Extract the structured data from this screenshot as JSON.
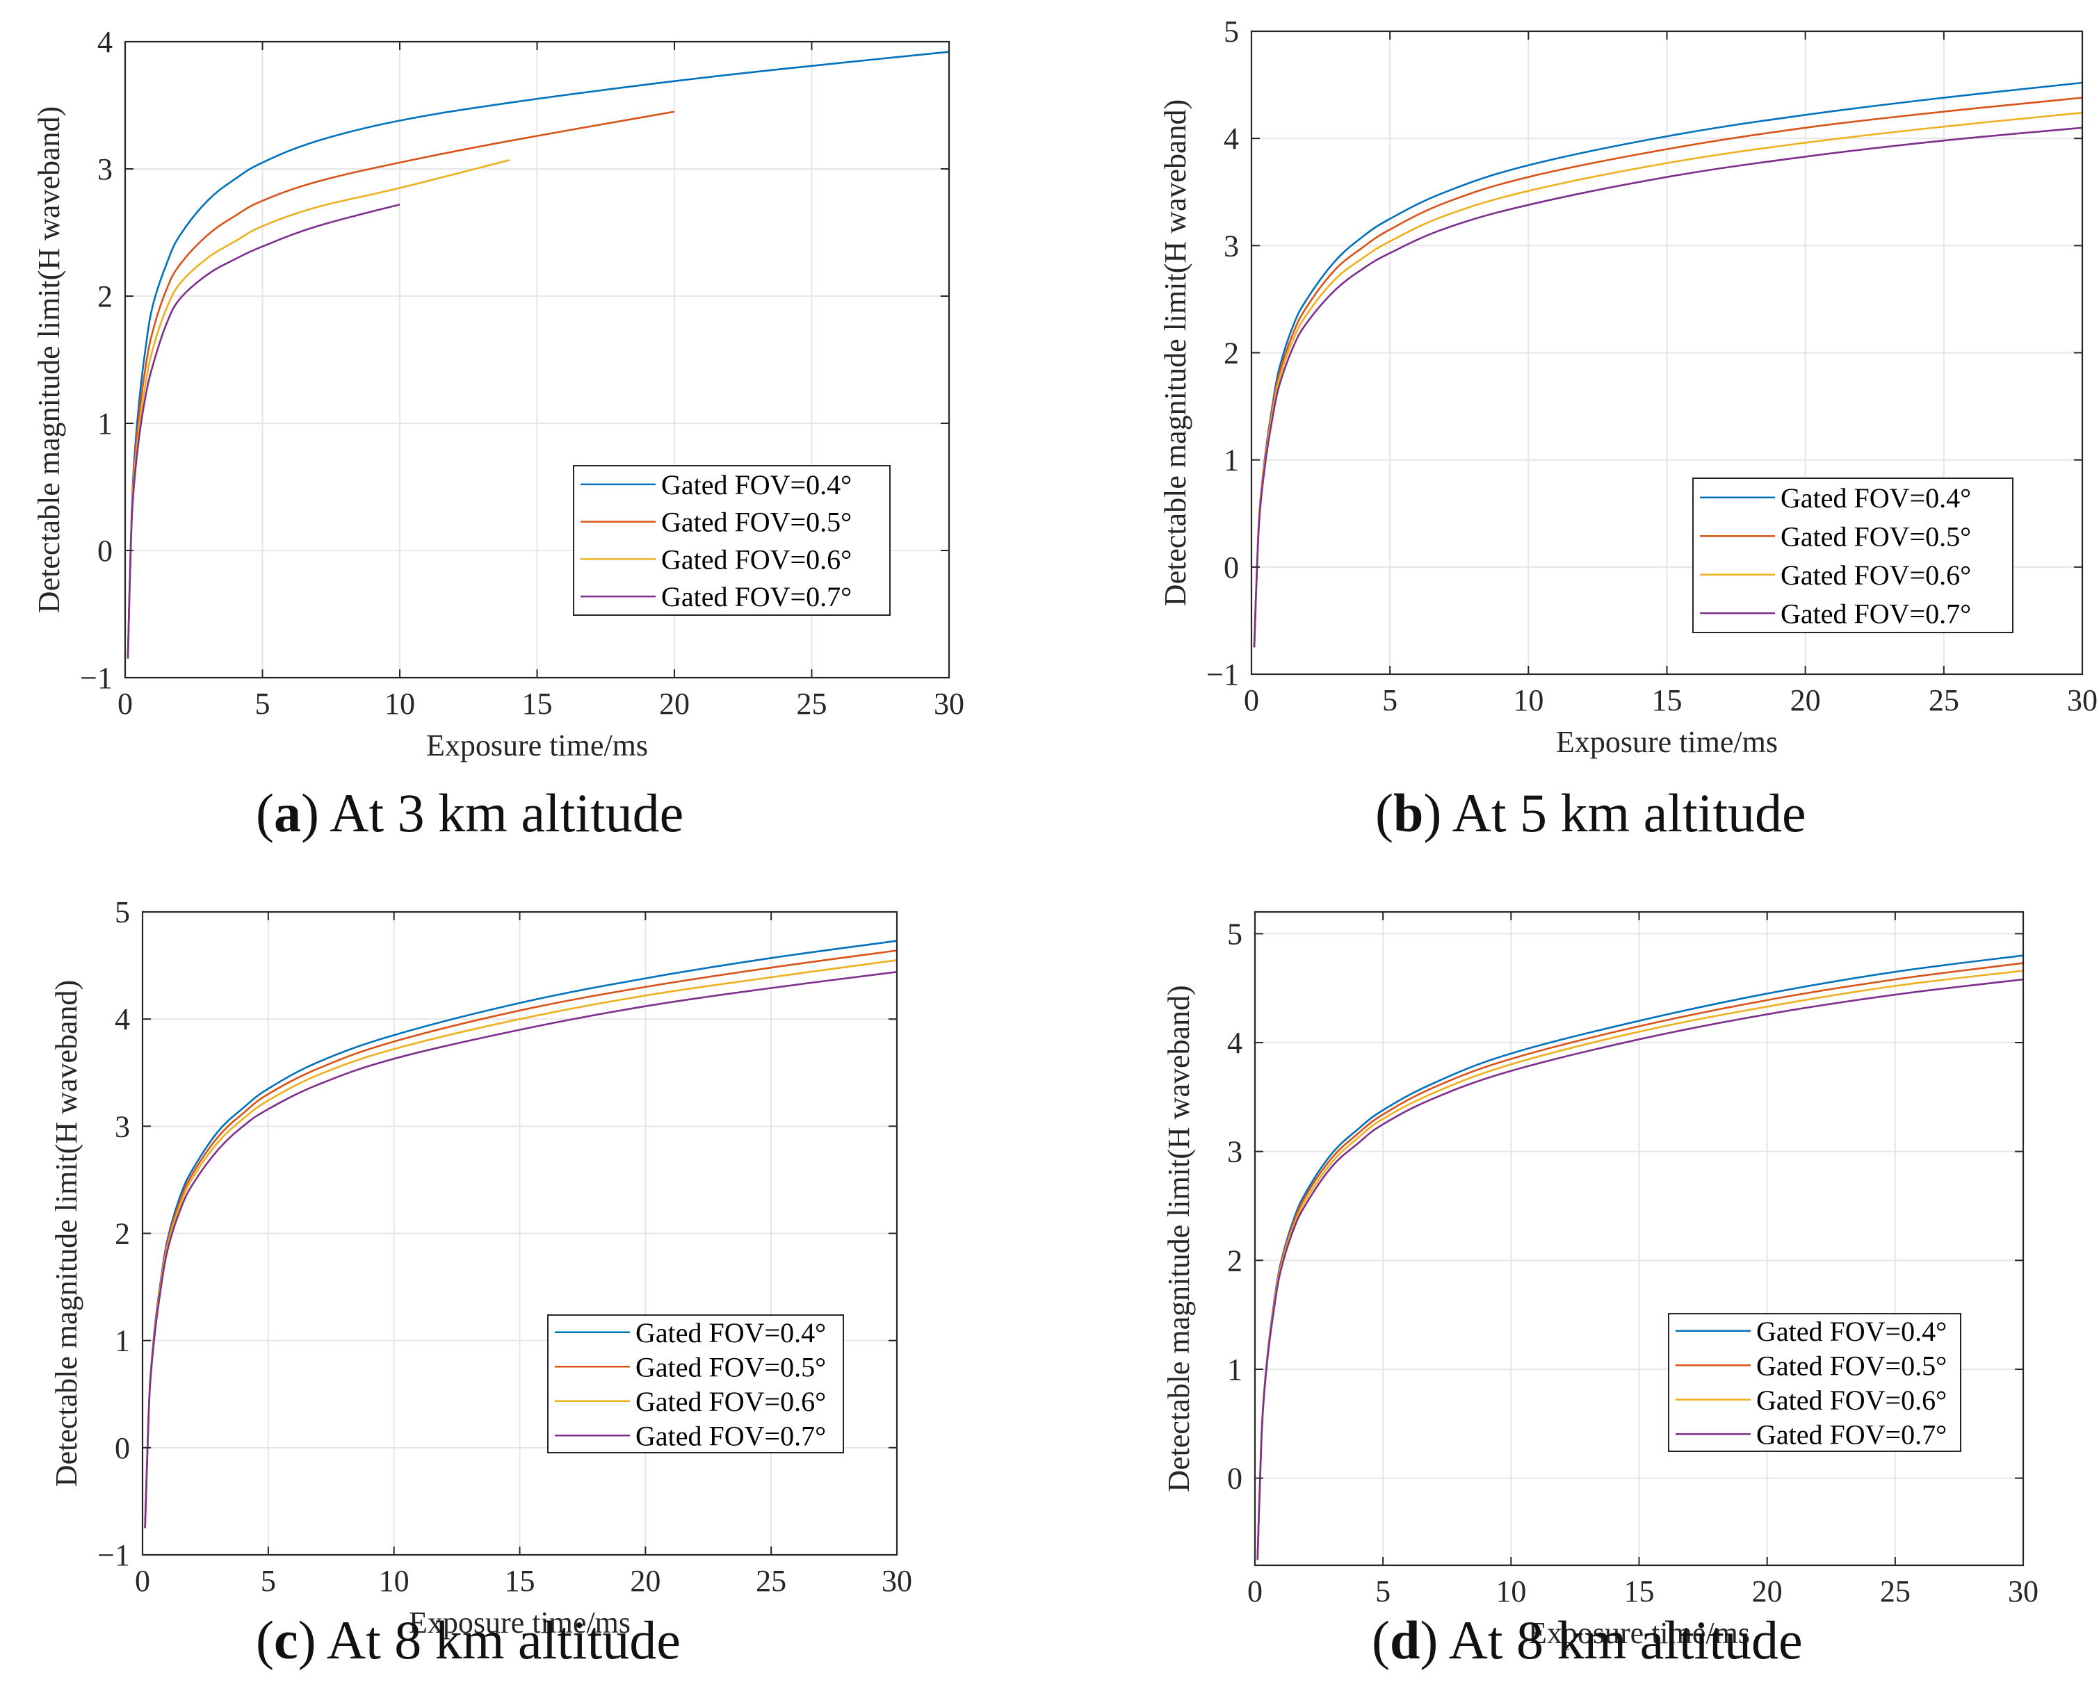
{
  "figure": {
    "colors": {
      "fov04": "#0072BD",
      "fov05": "#D95319",
      "fov06": "#EDB120",
      "fov07": "#7E2F8E",
      "grid": "#e6e6e6",
      "axis": "#262626"
    }
  },
  "chart_data": [
    {
      "id": "a",
      "type": "line",
      "caption_letter": "a",
      "caption_text": "At 3 km altitude",
      "xlabel": "Exposure time/ms",
      "ylabel": "Detectable magnitude limit(H waveband)",
      "xlim": [
        0,
        30
      ],
      "ylim": [
        -1,
        4
      ],
      "xticks": [
        0,
        5,
        10,
        15,
        20,
        25,
        30
      ],
      "yticks": [
        -1,
        0,
        1,
        2,
        3,
        4
      ],
      "grid": true,
      "legend_position": "bottom-right",
      "series": [
        {
          "name": "Gated FOV=0.4°",
          "color_key": "fov04",
          "x": [
            0.1,
            0.2,
            0.3,
            0.5,
            0.75,
            1,
            1.5,
            2,
            3,
            4,
            5,
            7,
            10,
            14,
            20,
            25,
            30
          ],
          "y": [
            -0.85,
            0.0,
            0.6,
            1.15,
            1.6,
            1.92,
            2.25,
            2.48,
            2.75,
            2.92,
            3.05,
            3.22,
            3.38,
            3.52,
            3.69,
            3.81,
            3.92
          ]
        },
        {
          "name": "Gated FOV=0.5°",
          "color_key": "fov05",
          "x": [
            0.1,
            0.2,
            0.3,
            0.5,
            0.75,
            1,
            1.5,
            2,
            3,
            4,
            5,
            7,
            10,
            14,
            20
          ],
          "y": [
            -0.85,
            0.0,
            0.55,
            1.05,
            1.45,
            1.72,
            2.05,
            2.25,
            2.48,
            2.63,
            2.75,
            2.9,
            3.05,
            3.22,
            3.45
          ]
        },
        {
          "name": "Gated FOV=0.6°",
          "color_key": "fov06",
          "x": [
            0.1,
            0.2,
            0.3,
            0.5,
            0.75,
            1,
            1.5,
            2,
            3,
            4,
            5,
            7,
            10,
            14
          ],
          "y": [
            -0.85,
            0.0,
            0.5,
            0.95,
            1.32,
            1.58,
            1.9,
            2.1,
            2.3,
            2.43,
            2.55,
            2.7,
            2.85,
            3.07
          ]
        },
        {
          "name": "Gated FOV=0.7°",
          "color_key": "fov07",
          "x": [
            0.1,
            0.2,
            0.3,
            0.5,
            0.75,
            1,
            1.5,
            2,
            3,
            4,
            5,
            7,
            10
          ],
          "y": [
            -0.85,
            0.0,
            0.45,
            0.88,
            1.22,
            1.45,
            1.78,
            1.98,
            2.17,
            2.29,
            2.39,
            2.55,
            2.72
          ]
        }
      ]
    },
    {
      "id": "b",
      "type": "line",
      "caption_letter": "b",
      "caption_text": "At 5 km altitude",
      "xlabel": "Exposure time/ms",
      "ylabel": "Detectable magnitude limit(H waveband)",
      "xlim": [
        0,
        30
      ],
      "ylim": [
        -1,
        5
      ],
      "xticks": [
        0,
        5,
        10,
        15,
        20,
        25,
        30
      ],
      "yticks": [
        -1,
        0,
        1,
        2,
        3,
        4,
        5
      ],
      "grid": true,
      "legend_position": "bottom-right",
      "series": [
        {
          "name": "Gated FOV=0.4°",
          "color_key": "fov04",
          "x": [
            0.1,
            0.2,
            0.3,
            0.5,
            0.75,
            1,
            1.5,
            2,
            3,
            4,
            5,
            7,
            10,
            15,
            20,
            25,
            30
          ],
          "y": [
            -0.75,
            0.0,
            0.55,
            1.05,
            1.5,
            1.85,
            2.25,
            2.5,
            2.85,
            3.08,
            3.25,
            3.5,
            3.75,
            4.02,
            4.22,
            4.38,
            4.52
          ]
        },
        {
          "name": "Gated FOV=0.5°",
          "color_key": "fov05",
          "x": [
            0.1,
            0.2,
            0.3,
            0.5,
            0.75,
            1,
            1.5,
            2,
            3,
            4,
            5,
            7,
            10,
            15,
            20,
            25,
            30
          ],
          "y": [
            -0.75,
            0.0,
            0.55,
            1.03,
            1.47,
            1.8,
            2.18,
            2.43,
            2.77,
            2.98,
            3.15,
            3.4,
            3.64,
            3.9,
            4.1,
            4.25,
            4.38
          ]
        },
        {
          "name": "Gated FOV=0.6°",
          "color_key": "fov06",
          "x": [
            0.1,
            0.2,
            0.3,
            0.5,
            0.75,
            1,
            1.5,
            2,
            3,
            4,
            5,
            7,
            10,
            15,
            20,
            25,
            30
          ],
          "y": [
            -0.75,
            0.0,
            0.53,
            1.0,
            1.43,
            1.75,
            2.12,
            2.36,
            2.68,
            2.88,
            3.04,
            3.28,
            3.51,
            3.77,
            3.96,
            4.11,
            4.24
          ]
        },
        {
          "name": "Gated FOV=0.7°",
          "color_key": "fov07",
          "x": [
            0.1,
            0.2,
            0.3,
            0.5,
            0.75,
            1,
            1.5,
            2,
            3,
            4,
            5,
            7,
            10,
            15,
            20,
            25,
            30
          ],
          "y": [
            -0.75,
            0.0,
            0.5,
            0.97,
            1.38,
            1.69,
            2.05,
            2.28,
            2.58,
            2.78,
            2.93,
            3.16,
            3.38,
            3.64,
            3.83,
            3.98,
            4.1
          ]
        }
      ]
    },
    {
      "id": "c",
      "type": "line",
      "caption_letter": "c",
      "caption_text": "At 8 km altitude",
      "xlabel": "Exposure time/ms",
      "ylabel": "Detectable magnitude limit(H waveband)",
      "xlim": [
        0,
        30
      ],
      "ylim": [
        -1,
        5
      ],
      "xticks": [
        0,
        5,
        10,
        15,
        20,
        25,
        30
      ],
      "yticks": [
        -1,
        0,
        1,
        2,
        3,
        4,
        5
      ],
      "grid": true,
      "legend_position": "bottom-right",
      "series": [
        {
          "name": "Gated FOV=0.4°",
          "color_key": "fov04",
          "x": [
            0.1,
            0.2,
            0.3,
            0.5,
            0.75,
            1,
            1.5,
            2,
            3,
            4,
            5,
            7,
            10,
            15,
            20,
            25,
            30
          ],
          "y": [
            -0.75,
            0.0,
            0.6,
            1.15,
            1.6,
            1.95,
            2.35,
            2.6,
            2.95,
            3.17,
            3.35,
            3.6,
            3.85,
            4.15,
            4.38,
            4.57,
            4.73
          ]
        },
        {
          "name": "Gated FOV=0.5°",
          "color_key": "fov05",
          "x": [
            0.1,
            0.2,
            0.3,
            0.5,
            0.75,
            1,
            1.5,
            2,
            3,
            4,
            5,
            7,
            10,
            15,
            20,
            25,
            30
          ],
          "y": [
            -0.75,
            0.0,
            0.6,
            1.13,
            1.58,
            1.92,
            2.31,
            2.56,
            2.9,
            3.12,
            3.3,
            3.54,
            3.79,
            4.08,
            4.3,
            4.48,
            4.64
          ]
        },
        {
          "name": "Gated FOV=0.6°",
          "color_key": "fov06",
          "x": [
            0.1,
            0.2,
            0.3,
            0.5,
            0.75,
            1,
            1.5,
            2,
            3,
            4,
            5,
            7,
            10,
            15,
            20,
            25,
            30
          ],
          "y": [
            -0.75,
            0.0,
            0.59,
            1.11,
            1.55,
            1.89,
            2.27,
            2.52,
            2.85,
            3.07,
            3.24,
            3.48,
            3.72,
            4.0,
            4.22,
            4.39,
            4.55
          ]
        },
        {
          "name": "Gated FOV=0.7°",
          "color_key": "fov07",
          "x": [
            0.1,
            0.2,
            0.3,
            0.5,
            0.75,
            1,
            1.5,
            2,
            3,
            4,
            5,
            7,
            10,
            15,
            20,
            25,
            30
          ],
          "y": [
            -0.75,
            0.0,
            0.58,
            1.09,
            1.52,
            1.85,
            2.22,
            2.46,
            2.78,
            3.0,
            3.16,
            3.39,
            3.63,
            3.9,
            4.12,
            4.29,
            4.44
          ]
        }
      ]
    },
    {
      "id": "d",
      "type": "line",
      "caption_letter": "d",
      "caption_text": "At 8 km altitude",
      "xlabel": "Exposure time/ms",
      "ylabel": "Detectable magnitude limit(H waveband)",
      "xlim": [
        0,
        30
      ],
      "ylim": [
        -0.8,
        5.2
      ],
      "xticks": [
        0,
        5,
        10,
        15,
        20,
        25,
        30
      ],
      "yticks": [
        0,
        1,
        2,
        3,
        4,
        5
      ],
      "grid": true,
      "legend_position": "bottom-right",
      "series": [
        {
          "name": "Gated FOV=0.4°",
          "color_key": "fov04",
          "x": [
            0.1,
            0.2,
            0.3,
            0.5,
            0.75,
            1,
            1.5,
            2,
            3,
            4,
            5,
            7,
            10,
            15,
            20,
            25,
            30
          ],
          "y": [
            -0.75,
            0.0,
            0.6,
            1.15,
            1.62,
            1.97,
            2.37,
            2.63,
            2.98,
            3.2,
            3.38,
            3.63,
            3.9,
            4.2,
            4.45,
            4.65,
            4.8
          ]
        },
        {
          "name": "Gated FOV=0.5°",
          "color_key": "fov05",
          "x": [
            0.1,
            0.2,
            0.3,
            0.5,
            0.75,
            1,
            1.5,
            2,
            3,
            4,
            5,
            7,
            10,
            15,
            20,
            25,
            30
          ],
          "y": [
            -0.75,
            0.0,
            0.6,
            1.14,
            1.6,
            1.95,
            2.34,
            2.6,
            2.94,
            3.16,
            3.34,
            3.59,
            3.85,
            4.15,
            4.39,
            4.58,
            4.73
          ]
        },
        {
          "name": "Gated FOV=0.6°",
          "color_key": "fov06",
          "x": [
            0.1,
            0.2,
            0.3,
            0.5,
            0.75,
            1,
            1.5,
            2,
            3,
            4,
            5,
            7,
            10,
            15,
            20,
            25,
            30
          ],
          "y": [
            -0.75,
            0.0,
            0.59,
            1.13,
            1.58,
            1.93,
            2.31,
            2.56,
            2.9,
            3.12,
            3.3,
            3.54,
            3.8,
            4.1,
            4.33,
            4.52,
            4.66
          ]
        },
        {
          "name": "Gated FOV=0.7°",
          "color_key": "fov07",
          "x": [
            0.1,
            0.2,
            0.3,
            0.5,
            0.75,
            1,
            1.5,
            2,
            3,
            4,
            5,
            7,
            10,
            15,
            20,
            25,
            30
          ],
          "y": [
            -0.75,
            0.0,
            0.58,
            1.12,
            1.56,
            1.9,
            2.28,
            2.52,
            2.86,
            3.07,
            3.25,
            3.49,
            3.74,
            4.03,
            4.26,
            4.44,
            4.58
          ]
        }
      ]
    }
  ]
}
